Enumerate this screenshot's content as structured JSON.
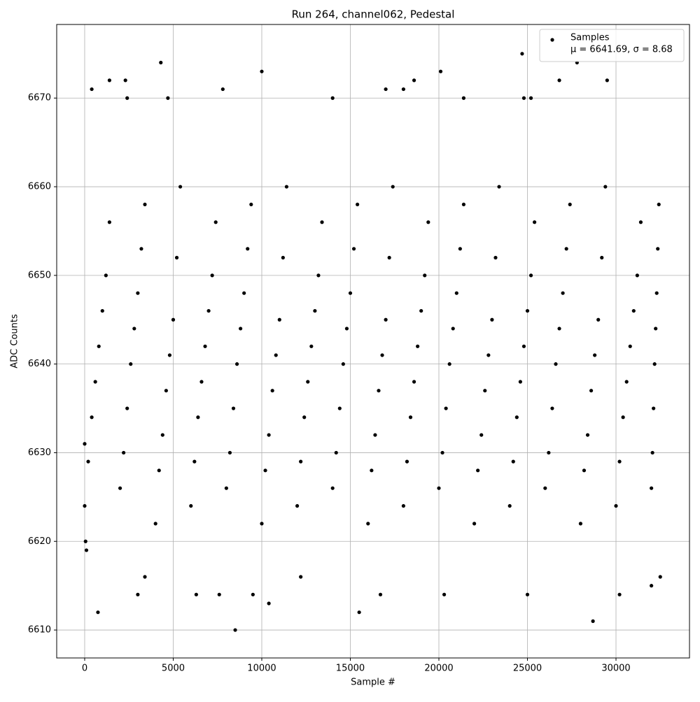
{
  "chart_data": {
    "type": "scatter",
    "title": "Run 264, channel062, Pedestal",
    "x_label": "Sample #",
    "y_label": "ADC Counts",
    "xlim": [
      -1580,
      34150
    ],
    "ylim": [
      6606.85,
      6678.3
    ],
    "xticks": [
      0,
      5000,
      10000,
      15000,
      20000,
      25000,
      30000
    ],
    "yticks": [
      6610,
      6620,
      6630,
      6640,
      6650,
      6660,
      6670
    ],
    "grid": true,
    "legend": "upper right",
    "legend_label": "μ = 6641.69, σ = 8.68",
    "x": [
      0,
      200,
      400,
      600,
      800,
      1000,
      1200,
      1400,
      2000,
      2200,
      2400,
      2600,
      2800,
      3000,
      3200,
      3400,
      4000,
      4200,
      4400,
      4600,
      4800,
      5000,
      5200,
      5400,
      6000,
      6200,
      6400,
      6600,
      6800,
      7000,
      7200,
      7400,
      8000,
      8200,
      8400,
      8600,
      8800,
      9000,
      9200,
      9400,
      10000,
      10200,
      10400,
      10600,
      10800,
      11000,
      11200,
      11400,
      12000,
      12200,
      12400,
      12600,
      12800,
      13000,
      13200,
      13400,
      14000,
      14200,
      14400,
      14600,
      14800,
      15000,
      15200,
      15400,
      16000,
      16200,
      16400,
      16600,
      16800,
      17000,
      17200,
      17400,
      18000,
      18200,
      18400,
      18600,
      18800,
      19000,
      19200,
      19400,
      20000,
      20200,
      20400,
      20600,
      20800,
      21000,
      21200,
      21400,
      22000,
      22200,
      22400,
      22600,
      22800,
      23000,
      23200,
      23400,
      24000,
      24200,
      24400,
      24600,
      24800,
      25000,
      25200,
      25400,
      26000,
      26200,
      26400,
      26600,
      26800,
      27000,
      27200,
      27400,
      28000,
      28200,
      28400,
      28600,
      28800,
      29000,
      29200,
      29400,
      30000,
      30200,
      30400,
      30600,
      30800,
      31000,
      31200,
      31400,
      32000,
      32060,
      32120,
      32180,
      32240,
      32300,
      32360,
      32420,
      8500,
      28700,
      15500,
      750,
      10400,
      32000,
      4300,
      24700,
      27800,
      10000,
      20100,
      29500,
      26800,
      18600,
      1400,
      2300,
      400,
      7800,
      17000,
      18000,
      2400,
      4700,
      14000,
      21400,
      24800,
      25200,
      0,
      100,
      50,
      3000,
      6300,
      7600,
      16700,
      20300,
      25000,
      30200,
      9500,
      3400,
      12200,
      32500
    ],
    "series": [
      {
        "name": "Samples",
        "color": "#000000",
        "values": [
          6624,
          6629,
          6634,
          6638,
          6642,
          6646,
          6650,
          6656,
          6626,
          6630,
          6635,
          6640,
          6644,
          6648,
          6653,
          6658,
          6622,
          6628,
          6632,
          6637,
          6641,
          6645,
          6652,
          6660,
          6624,
          6629,
          6634,
          6638,
          6642,
          6646,
          6650,
          6656,
          6626,
          6630,
          6635,
          6640,
          6644,
          6648,
          6653,
          6658,
          6622,
          6628,
          6632,
          6637,
          6641,
          6645,
          6652,
          6660,
          6624,
          6629,
          6634,
          6638,
          6642,
          6646,
          6650,
          6656,
          6626,
          6630,
          6635,
          6640,
          6644,
          6648,
          6653,
          6658,
          6622,
          6628,
          6632,
          6637,
          6641,
          6645,
          6652,
          6660,
          6624,
          6629,
          6634,
          6638,
          6642,
          6646,
          6650,
          6656,
          6626,
          6630,
          6635,
          6640,
          6644,
          6648,
          6653,
          6658,
          6622,
          6628,
          6632,
          6637,
          6641,
          6645,
          6652,
          6660,
          6624,
          6629,
          6634,
          6638,
          6642,
          6646,
          6650,
          6656,
          6626,
          6630,
          6635,
          6640,
          6644,
          6648,
          6653,
          6658,
          6622,
          6628,
          6632,
          6637,
          6641,
          6645,
          6652,
          6660,
          6624,
          6629,
          6634,
          6638,
          6642,
          6646,
          6650,
          6656,
          6626,
          6630,
          6635,
          6640,
          6644,
          6648,
          6653,
          6658,
          6610,
          6611,
          6612,
          6612,
          6613,
          6615,
          6674,
          6675,
          6674,
          6673,
          6673,
          6672,
          6672,
          6672,
          6672,
          6672,
          6671,
          6671,
          6671,
          6671,
          6670,
          6670,
          6670,
          6670,
          6670,
          6670,
          6631,
          6619,
          6620,
          6614,
          6614,
          6614,
          6614,
          6614,
          6614,
          6614,
          6614,
          6616,
          6616,
          6616
        ]
      }
    ]
  }
}
